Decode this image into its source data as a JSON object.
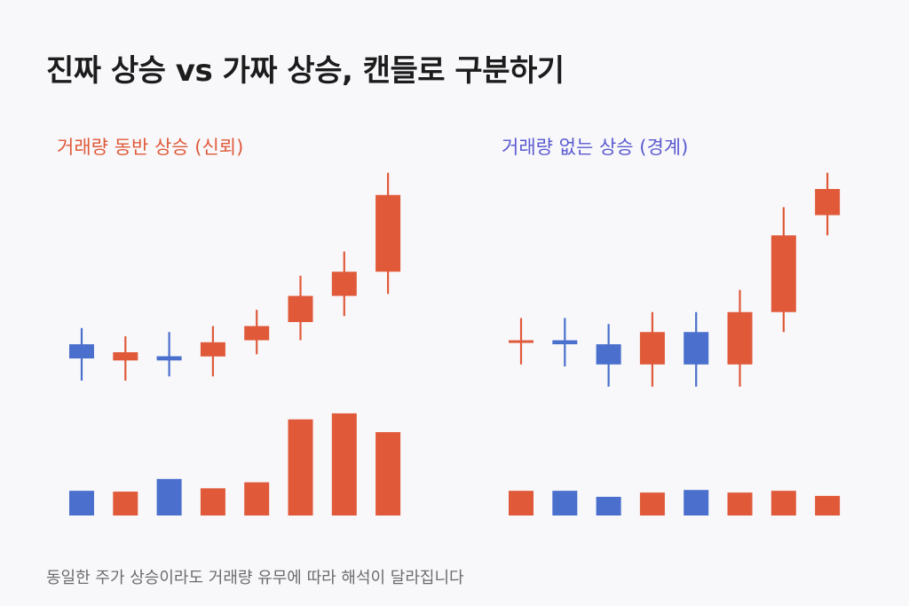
{
  "title": "진짜 상승 vs 가짜 상승, 캔들로 구분하기",
  "footnote": "동일한 주가 상승이라도 거래량 유무에 따라 해석이 달라집니다",
  "colors": {
    "up": "#e05a3a",
    "down": "#4a6fcc",
    "text": "#1c1c1c",
    "muted": "#6b6b6b",
    "bg": "#f8f8fb"
  },
  "chart_data": [
    {
      "type": "candlestick",
      "title": "거래량 동반 상승 (신뢰)",
      "title_color": "#e05a3a",
      "price_range": [
        0,
        100
      ],
      "volume_range": [
        0,
        100
      ],
      "candles": [
        {
          "open": 20.0,
          "close": 13.6,
          "high": 27.3,
          "low": 3.6,
          "volume": 23.8
        },
        {
          "open": 12.7,
          "close": 16.4,
          "high": 23.6,
          "low": 3.6,
          "volume": 23.0
        },
        {
          "open": 14.6,
          "close": 12.7,
          "high": 25.5,
          "low": 5.5,
          "volume": 35.2
        },
        {
          "open": 14.5,
          "close": 20.9,
          "high": 28.2,
          "low": 5.5,
          "volume": 26.2
        },
        {
          "open": 21.8,
          "close": 28.2,
          "high": 35.5,
          "low": 15.5,
          "volume": 32.0
        },
        {
          "open": 30.0,
          "close": 41.8,
          "high": 50.9,
          "low": 21.8,
          "volume": 92.6
        },
        {
          "open": 41.8,
          "close": 52.7,
          "high": 61.8,
          "low": 32.7,
          "volume": 98.4
        },
        {
          "open": 52.7,
          "close": 87.3,
          "high": 97.3,
          "low": 42.7,
          "volume": 80.3
        }
      ]
    },
    {
      "type": "candlestick",
      "title": "거래량 없는 상승 (경계)",
      "title_color": "#5a5ad0",
      "price_range": [
        0,
        100
      ],
      "volume_range": [
        0,
        100
      ],
      "candles": [
        {
          "open": 20.9,
          "close": 21.8,
          "high": 31.8,
          "low": 10.9,
          "volume": 23.8
        },
        {
          "open": 21.8,
          "close": 20.0,
          "high": 31.8,
          "low": 10.0,
          "volume": 23.8
        },
        {
          "open": 20.0,
          "close": 10.9,
          "high": 29.1,
          "low": 0.9,
          "volume": 18.0
        },
        {
          "open": 10.9,
          "close": 25.5,
          "high": 34.5,
          "low": 0.9,
          "volume": 22.1
        },
        {
          "open": 25.5,
          "close": 10.9,
          "high": 34.5,
          "low": 0.9,
          "volume": 24.6
        },
        {
          "open": 10.9,
          "close": 34.5,
          "high": 44.5,
          "low": 0.9,
          "volume": 22.1
        },
        {
          "open": 34.5,
          "close": 69.1,
          "high": 81.8,
          "low": 25.5,
          "volume": 23.8
        },
        {
          "open": 78.2,
          "close": 90.0,
          "high": 97.3,
          "low": 69.1,
          "volume": 18.9
        }
      ]
    }
  ]
}
